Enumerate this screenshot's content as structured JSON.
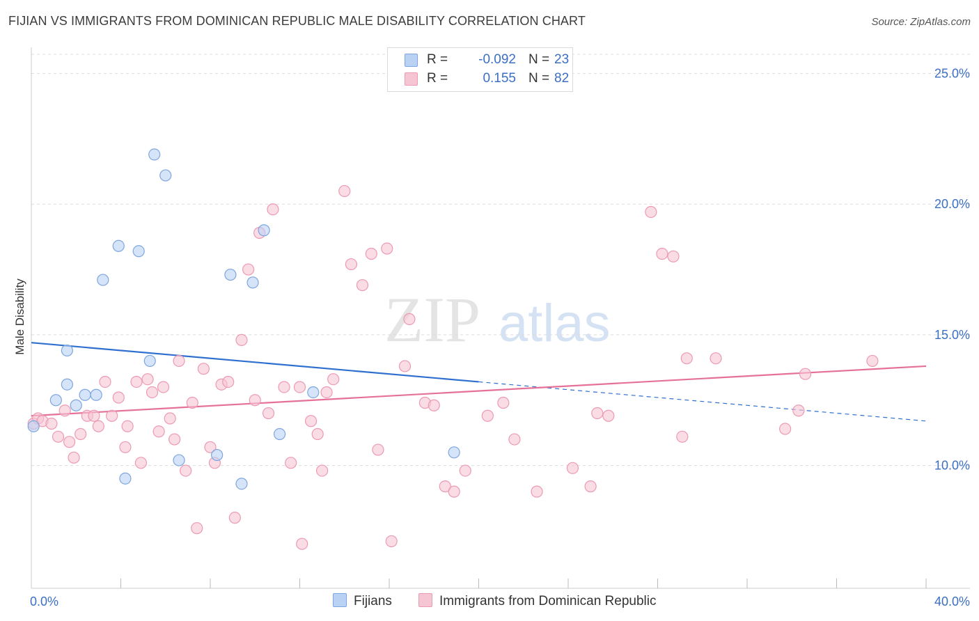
{
  "title": "FIJIAN VS IMMIGRANTS FROM DOMINICAN REPUBLIC MALE DISABILITY CORRELATION CHART",
  "source": "Source: ZipAtlas.com",
  "watermark": {
    "zip": "ZIP",
    "atlas": "atlas"
  },
  "colors": {
    "fijians_fill": "#b9d2f3",
    "fijians_stroke": "#7ea6de",
    "fijians_line": "#2f6fcf",
    "dominican_fill": "#f6c5d4",
    "dominican_stroke": "#ec9ab4",
    "dominican_line": "#e57199",
    "grid": "#dcdcdc",
    "axis_text": "#3b6fc4"
  },
  "legend": {
    "series": [
      {
        "r_label": "R =",
        "r_value": "-0.092",
        "n_label": "N =",
        "n_value": "23"
      },
      {
        "r_label": "R =",
        "r_value": "0.155",
        "n_label": "N =",
        "n_value": "82"
      }
    ]
  },
  "chart_data": {
    "type": "scatter",
    "title": "FIJIAN VS IMMIGRANTS FROM DOMINICAN REPUBLIC MALE DISABILITY CORRELATION CHART",
    "xlabel": "",
    "ylabel": "Male Disability",
    "xlim": [
      0,
      40
    ],
    "ylim": [
      5.3,
      26.0
    ],
    "x_tick_labels": [
      "0.0%",
      "40.0%"
    ],
    "y_ticks": [
      10,
      15,
      20,
      25
    ],
    "y_tick_labels": [
      "10.0%",
      "15.0%",
      "20.0%",
      "25.0%"
    ],
    "grid": true,
    "legend_position": "top-center",
    "series": [
      {
        "name": "Fijians",
        "r": -0.092,
        "n": 23,
        "trend": {
          "x0": 0.0,
          "y0": 14.7,
          "x1": 20.0,
          "y1": 13.2,
          "dashed_to_x": 40.0,
          "dashed_to_y": 11.7
        },
        "points": [
          [
            0.1,
            11.5
          ],
          [
            1.6,
            13.1
          ],
          [
            1.1,
            12.5
          ],
          [
            1.6,
            14.4
          ],
          [
            2.0,
            12.3
          ],
          [
            2.4,
            12.7
          ],
          [
            2.9,
            12.7
          ],
          [
            3.2,
            17.1
          ],
          [
            3.9,
            18.4
          ],
          [
            4.2,
            9.5
          ],
          [
            4.8,
            18.2
          ],
          [
            5.3,
            14.0
          ],
          [
            5.5,
            21.9
          ],
          [
            6.0,
            21.1
          ],
          [
            6.6,
            10.2
          ],
          [
            8.3,
            10.4
          ],
          [
            8.9,
            17.3
          ],
          [
            9.4,
            9.3
          ],
          [
            9.9,
            17.0
          ],
          [
            10.4,
            19.0
          ],
          [
            11.1,
            11.2
          ],
          [
            12.6,
            12.8
          ],
          [
            18.9,
            10.5
          ]
        ]
      },
      {
        "name": "Immigrants from Dominican Republic",
        "r": 0.155,
        "n": 82,
        "trend": {
          "x0": 0.0,
          "y0": 11.9,
          "x1": 40.0,
          "y1": 13.8
        },
        "points": [
          [
            0.1,
            11.6
          ],
          [
            0.3,
            11.8
          ],
          [
            0.5,
            11.7
          ],
          [
            0.9,
            11.6
          ],
          [
            1.2,
            11.1
          ],
          [
            1.5,
            12.1
          ],
          [
            1.7,
            10.9
          ],
          [
            1.9,
            10.3
          ],
          [
            2.2,
            11.2
          ],
          [
            2.5,
            11.9
          ],
          [
            2.8,
            11.9
          ],
          [
            3.0,
            11.5
          ],
          [
            3.3,
            13.2
          ],
          [
            3.6,
            11.9
          ],
          [
            3.9,
            12.6
          ],
          [
            4.2,
            10.7
          ],
          [
            4.3,
            11.5
          ],
          [
            4.7,
            13.2
          ],
          [
            4.9,
            10.1
          ],
          [
            5.2,
            13.3
          ],
          [
            5.4,
            12.8
          ],
          [
            5.7,
            11.3
          ],
          [
            5.9,
            13.0
          ],
          [
            6.2,
            11.8
          ],
          [
            6.4,
            11.0
          ],
          [
            6.6,
            14.0
          ],
          [
            6.9,
            9.8
          ],
          [
            7.2,
            12.4
          ],
          [
            7.4,
            7.6
          ],
          [
            7.7,
            13.7
          ],
          [
            8.0,
            10.7
          ],
          [
            8.2,
            10.1
          ],
          [
            8.5,
            13.1
          ],
          [
            8.8,
            13.2
          ],
          [
            9.1,
            8.0
          ],
          [
            9.4,
            14.8
          ],
          [
            9.7,
            17.5
          ],
          [
            10.0,
            12.5
          ],
          [
            10.2,
            18.9
          ],
          [
            10.6,
            12.0
          ],
          [
            10.8,
            19.8
          ],
          [
            11.3,
            13.0
          ],
          [
            11.6,
            10.1
          ],
          [
            12.0,
            13.0
          ],
          [
            12.1,
            7.0
          ],
          [
            12.5,
            11.7
          ],
          [
            12.8,
            11.2
          ],
          [
            13.0,
            9.8
          ],
          [
            13.2,
            12.8
          ],
          [
            13.5,
            13.3
          ],
          [
            14.0,
            20.5
          ],
          [
            14.3,
            17.7
          ],
          [
            14.8,
            16.9
          ],
          [
            15.2,
            18.1
          ],
          [
            15.5,
            10.6
          ],
          [
            15.9,
            18.3
          ],
          [
            16.1,
            7.1
          ],
          [
            16.7,
            13.8
          ],
          [
            16.9,
            15.6
          ],
          [
            17.6,
            12.4
          ],
          [
            18.0,
            12.3
          ],
          [
            18.5,
            9.2
          ],
          [
            18.9,
            9.0
          ],
          [
            19.4,
            9.8
          ],
          [
            20.4,
            11.9
          ],
          [
            21.1,
            12.4
          ],
          [
            21.6,
            11.0
          ],
          [
            22.6,
            9.0
          ],
          [
            24.2,
            9.9
          ],
          [
            25.0,
            9.2
          ],
          [
            25.3,
            12.0
          ],
          [
            25.8,
            11.9
          ],
          [
            27.7,
            19.7
          ],
          [
            28.2,
            18.1
          ],
          [
            28.7,
            18.0
          ],
          [
            29.1,
            11.1
          ],
          [
            29.3,
            14.1
          ],
          [
            30.6,
            14.1
          ],
          [
            33.7,
            11.4
          ],
          [
            34.3,
            12.1
          ],
          [
            34.6,
            13.5
          ],
          [
            37.6,
            14.0
          ]
        ]
      }
    ]
  }
}
